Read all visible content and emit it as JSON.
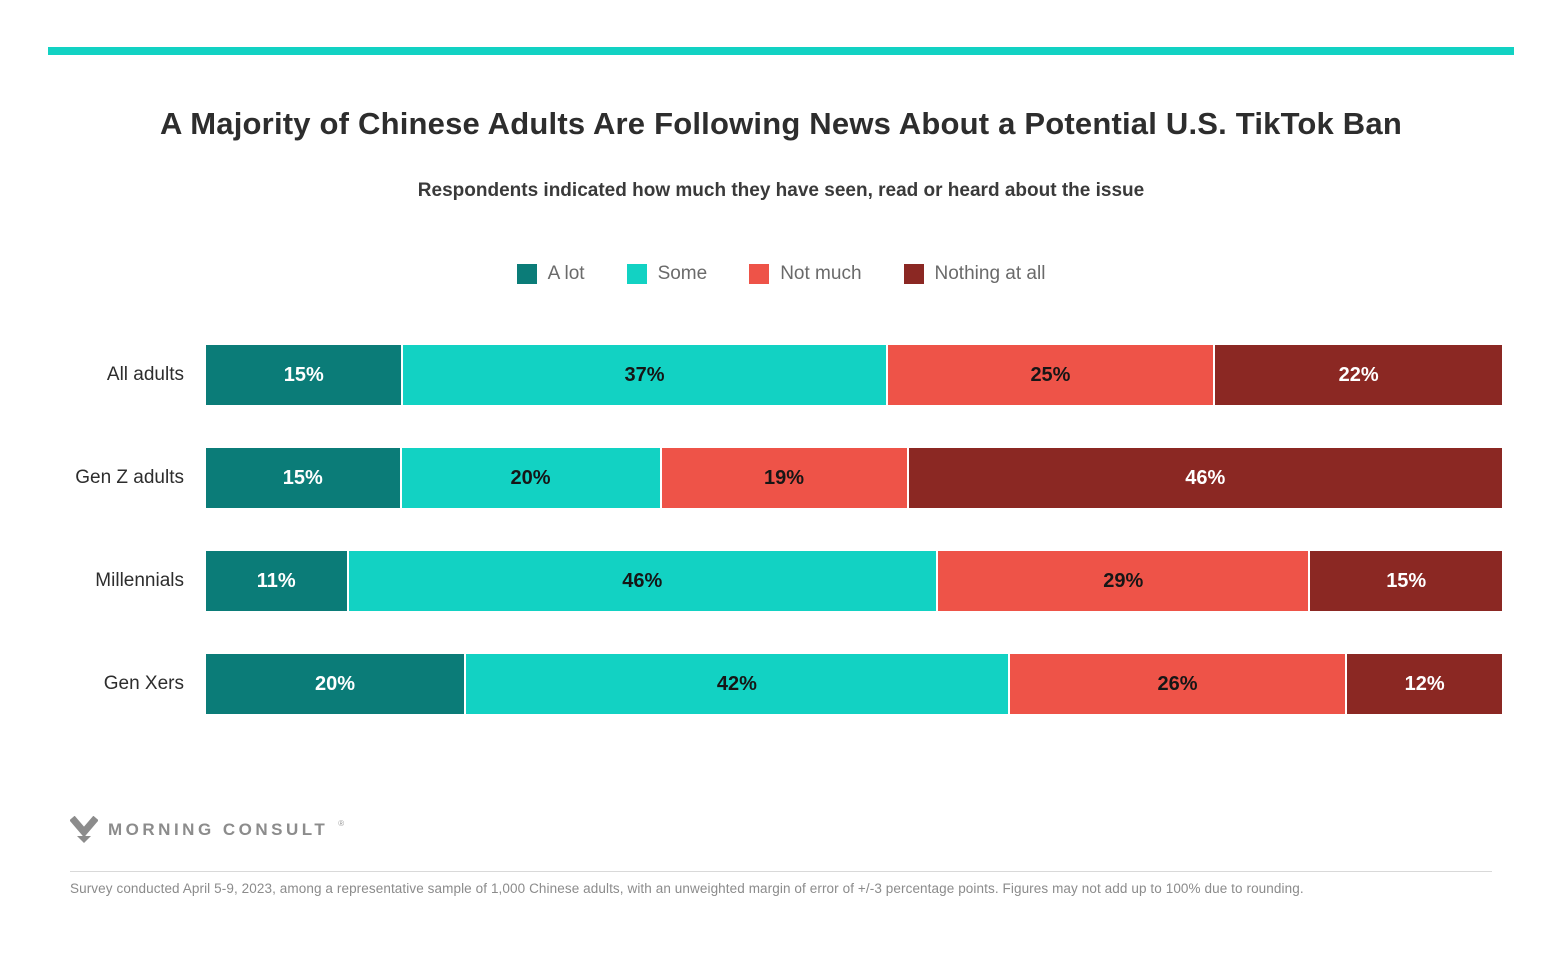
{
  "accent_color": "#12d2c3",
  "header": {
    "title": "A Majority of Chinese Adults Are Following News About a Potential U.S. TikTok Ban",
    "subtitle": "Respondents indicated how much they have seen, read or heard about the issue"
  },
  "legend": {
    "position": "top-center",
    "items": [
      {
        "label": "A lot",
        "color": "#0b7c78"
      },
      {
        "label": "Some",
        "color": "#12d2c3"
      },
      {
        "label": "Not much",
        "color": "#ee5348"
      },
      {
        "label": "Nothing at all",
        "color": "#8b2823"
      }
    ]
  },
  "chart_data": {
    "type": "bar",
    "orientation": "horizontal",
    "stacked": true,
    "normalized_to_full_width": true,
    "unit": "%",
    "categories": [
      "All adults",
      "Gen Z adults",
      "Millennials",
      "Gen Xers"
    ],
    "series": [
      {
        "name": "A lot",
        "color": "#0b7c78",
        "label_color": "#ffffff",
        "values": [
          15,
          15,
          11,
          20
        ]
      },
      {
        "name": "Some",
        "color": "#12d2c3",
        "label_color": "#161616",
        "values": [
          37,
          20,
          46,
          42
        ]
      },
      {
        "name": "Not much",
        "color": "#ee5348",
        "label_color": "#161616",
        "values": [
          25,
          19,
          29,
          26
        ]
      },
      {
        "name": "Nothing at all",
        "color": "#8b2823",
        "label_color": "#ffffff",
        "values": [
          22,
          46,
          15,
          12
        ]
      }
    ],
    "title": "A Majority of Chinese Adults Are Following News About a Potential U.S. TikTok Ban",
    "xlabel": "",
    "ylabel": "",
    "xlim": [
      0,
      100
    ],
    "grid": false,
    "value_label_format": "{value}%"
  },
  "footer": {
    "logo_text": "MORNING CONSULT",
    "logo_reg": "®",
    "note": "Survey conducted April 5-9, 2023, among a representative sample of 1,000 Chinese adults, with an unweighted margin of error of +/-3 percentage points. Figures may not add up to 100% due to rounding."
  }
}
